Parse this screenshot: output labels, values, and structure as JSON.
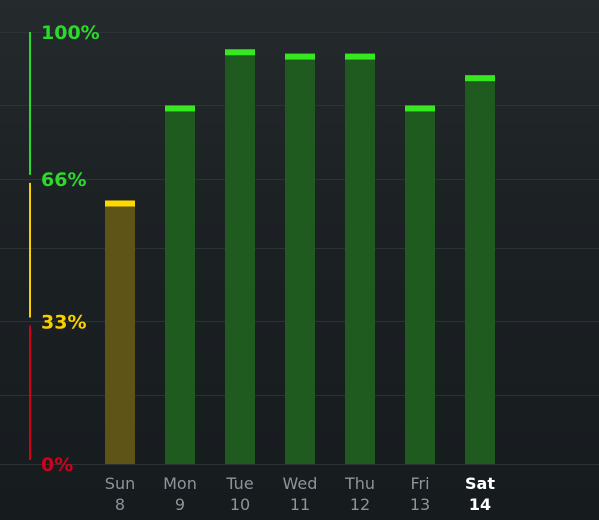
{
  "chart_data": {
    "type": "bar",
    "categories": [
      "Sun",
      "Mon",
      "Tue",
      "Wed",
      "Thu",
      "Fri",
      "Sat"
    ],
    "dates": [
      "8",
      "9",
      "10",
      "11",
      "12",
      "13",
      "14"
    ],
    "selected_index": 6,
    "values": [
      61,
      83,
      96,
      95,
      95,
      83,
      90
    ],
    "ylim": [
      0,
      100
    ],
    "y_ticks": [
      {
        "value": 100,
        "label": "100%"
      },
      {
        "value": 66,
        "label": "66%"
      },
      {
        "value": 33,
        "label": "33%"
      },
      {
        "value": 0,
        "label": "0%"
      }
    ],
    "thresholds": [
      {
        "from": 0,
        "to": 33,
        "color": "#d0021b"
      },
      {
        "from": 33,
        "to": 66,
        "color": "#f8d000"
      },
      {
        "from": 66,
        "to": 100,
        "color": "#2bd92b"
      }
    ],
    "grid": true
  },
  "colors": {
    "green_cap": "#35e81f",
    "green_fill": "#1f5a1f",
    "yellow_cap": "#ffd800",
    "yellow_fill": "#5e5418",
    "day_label": "#8c959b",
    "day_label_selected": "#ffffff",
    "grid": "#2c3236"
  }
}
